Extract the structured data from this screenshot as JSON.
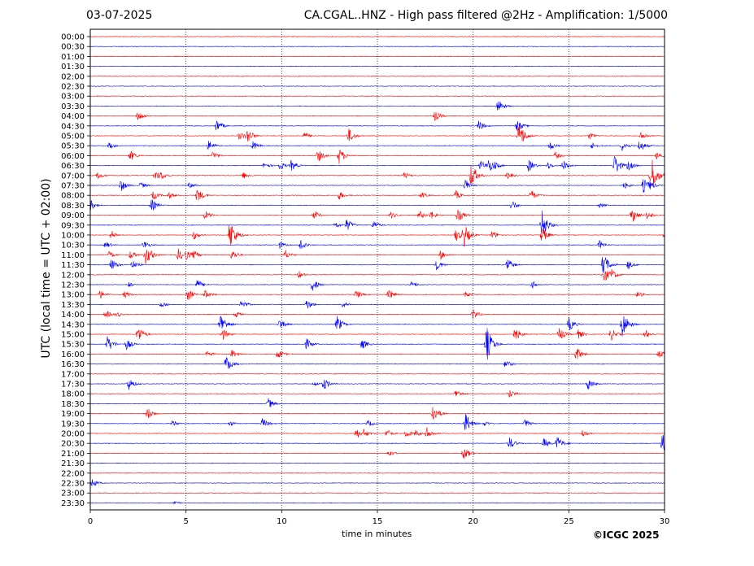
{
  "header": {
    "date": "03-07-2025",
    "title": "CA.CGAL..HNZ - High pass filtered @2Hz - Amplification: 1/5000"
  },
  "credit": "©ICGC 2025",
  "chart_data": {
    "type": "line",
    "title": "CA.CGAL..HNZ - High pass filtered @2Hz - Amplification: 1/5000",
    "xlabel": "time in minutes",
    "ylabel": "UTC (local time = UTC + 02:00)",
    "xlim": [
      0,
      30
    ],
    "x_ticks": [
      0,
      5,
      10,
      15,
      20,
      25,
      30
    ],
    "y_ticks": [
      "00:00",
      "00:30",
      "01:00",
      "01:30",
      "02:00",
      "02:30",
      "03:00",
      "03:30",
      "04:00",
      "04:30",
      "05:00",
      "05:30",
      "06:00",
      "06:30",
      "07:00",
      "07:30",
      "08:00",
      "08:30",
      "09:00",
      "09:30",
      "10:00",
      "10:30",
      "11:00",
      "11:30",
      "12:00",
      "12:30",
      "13:00",
      "13:30",
      "14:00",
      "14:30",
      "15:00",
      "15:30",
      "16:00",
      "16:30",
      "17:00",
      "17:30",
      "18:00",
      "18:30",
      "19:00",
      "19:30",
      "20:00",
      "20:30",
      "21:00",
      "21:30",
      "22:00",
      "22:30",
      "23:00",
      "23:30"
    ],
    "grid": {
      "x": true,
      "x_style": "dotted",
      "y": false
    },
    "trace_colors": [
      "#ff0000",
      "#0000ff"
    ],
    "trace_colors_note": "traces alternate red/blue per row",
    "events": [
      {
        "row": 7,
        "min": 21.3,
        "amp": 0.8
      },
      {
        "row": 8,
        "min": 2.5,
        "amp": 0.6
      },
      {
        "row": 8,
        "min": 18.0,
        "amp": 0.6
      },
      {
        "row": 9,
        "min": 6.6,
        "amp": 0.7
      },
      {
        "row": 9,
        "min": 20.3,
        "amp": 0.6
      },
      {
        "row": 9,
        "min": 22.3,
        "amp": 0.7
      },
      {
        "row": 10,
        "min": 7.8,
        "amp": 0.5
      },
      {
        "row": 10,
        "min": 8.2,
        "amp": 0.9
      },
      {
        "row": 10,
        "min": 11.2,
        "amp": 0.4
      },
      {
        "row": 10,
        "min": 13.5,
        "amp": 0.8
      },
      {
        "row": 10,
        "min": 22.4,
        "amp": 1.6
      },
      {
        "row": 10,
        "min": 26.1,
        "amp": 0.4
      },
      {
        "row": 10,
        "min": 28.8,
        "amp": 0.5
      },
      {
        "row": 11,
        "min": 1.0,
        "amp": 0.4
      },
      {
        "row": 11,
        "min": 6.2,
        "amp": 0.6
      },
      {
        "row": 11,
        "min": 8.5,
        "amp": 0.5
      },
      {
        "row": 11,
        "min": 24.0,
        "amp": 0.5
      },
      {
        "row": 11,
        "min": 26.2,
        "amp": 0.4
      },
      {
        "row": 11,
        "min": 27.8,
        "amp": 0.6
      },
      {
        "row": 11,
        "min": 28.7,
        "amp": 0.7
      },
      {
        "row": 12,
        "min": 2.1,
        "amp": 0.6
      },
      {
        "row": 12,
        "min": 6.4,
        "amp": 0.5
      },
      {
        "row": 12,
        "min": 11.9,
        "amp": 0.7
      },
      {
        "row": 12,
        "min": 13.0,
        "amp": 0.9
      },
      {
        "row": 12,
        "min": 24.3,
        "amp": 0.4
      },
      {
        "row": 12,
        "min": 29.6,
        "amp": 0.4
      },
      {
        "row": 13,
        "min": 9.1,
        "amp": 0.4
      },
      {
        "row": 13,
        "min": 9.9,
        "amp": 0.5
      },
      {
        "row": 13,
        "min": 10.5,
        "amp": 0.6
      },
      {
        "row": 13,
        "min": 20.4,
        "amp": 0.6
      },
      {
        "row": 13,
        "min": 20.8,
        "amp": 0.8
      },
      {
        "row": 13,
        "min": 21.1,
        "amp": 0.5
      },
      {
        "row": 13,
        "min": 22.9,
        "amp": 0.7
      },
      {
        "row": 13,
        "min": 23.9,
        "amp": 0.4
      },
      {
        "row": 13,
        "min": 24.7,
        "amp": 0.6
      },
      {
        "row": 13,
        "min": 27.4,
        "amp": 1.2
      },
      {
        "row": 13,
        "min": 28.1,
        "amp": 0.6
      },
      {
        "row": 14,
        "min": 0.4,
        "amp": 0.4
      },
      {
        "row": 14,
        "min": 3.4,
        "amp": 0.6
      },
      {
        "row": 14,
        "min": 3.7,
        "amp": 0.5
      },
      {
        "row": 14,
        "min": 8.0,
        "amp": 0.4
      },
      {
        "row": 14,
        "min": 16.4,
        "amp": 0.4
      },
      {
        "row": 14,
        "min": 19.9,
        "amp": 1.4
      },
      {
        "row": 14,
        "min": 21.8,
        "amp": 0.4
      },
      {
        "row": 14,
        "min": 29.3,
        "amp": 2.2
      },
      {
        "row": 15,
        "min": 1.6,
        "amp": 0.7
      },
      {
        "row": 15,
        "min": 2.6,
        "amp": 0.4
      },
      {
        "row": 15,
        "min": 5.2,
        "amp": 0.4
      },
      {
        "row": 15,
        "min": 19.6,
        "amp": 0.7
      },
      {
        "row": 15,
        "min": 27.9,
        "amp": 0.4
      },
      {
        "row": 15,
        "min": 28.9,
        "amp": 0.8
      },
      {
        "row": 15,
        "min": 29.2,
        "amp": 0.6
      },
      {
        "row": 16,
        "min": 3.3,
        "amp": 0.5
      },
      {
        "row": 16,
        "min": 4.1,
        "amp": 0.4
      },
      {
        "row": 16,
        "min": 5.6,
        "amp": 0.8
      },
      {
        "row": 16,
        "min": 13.0,
        "amp": 0.5
      },
      {
        "row": 16,
        "min": 17.3,
        "amp": 0.4
      },
      {
        "row": 16,
        "min": 19.1,
        "amp": 0.5
      },
      {
        "row": 16,
        "min": 23.0,
        "amp": 0.7
      },
      {
        "row": 17,
        "min": 0.0,
        "amp": 0.6
      },
      {
        "row": 17,
        "min": 3.2,
        "amp": 0.7
      },
      {
        "row": 17,
        "min": 22.0,
        "amp": 0.6
      },
      {
        "row": 17,
        "min": 26.6,
        "amp": 0.3
      },
      {
        "row": 18,
        "min": 6.0,
        "amp": 0.5
      },
      {
        "row": 18,
        "min": 11.7,
        "amp": 0.5
      },
      {
        "row": 18,
        "min": 15.7,
        "amp": 0.4
      },
      {
        "row": 18,
        "min": 17.2,
        "amp": 0.5
      },
      {
        "row": 18,
        "min": 17.8,
        "amp": 0.5
      },
      {
        "row": 18,
        "min": 19.2,
        "amp": 0.8
      },
      {
        "row": 18,
        "min": 28.3,
        "amp": 0.9
      },
      {
        "row": 18,
        "min": 29.1,
        "amp": 0.5
      },
      {
        "row": 19,
        "min": 12.8,
        "amp": 0.4
      },
      {
        "row": 19,
        "min": 13.4,
        "amp": 0.7
      },
      {
        "row": 19,
        "min": 14.8,
        "amp": 0.5
      },
      {
        "row": 19,
        "min": 23.6,
        "amp": 1.6
      },
      {
        "row": 20,
        "min": 1.1,
        "amp": 0.5
      },
      {
        "row": 20,
        "min": 5.4,
        "amp": 0.5
      },
      {
        "row": 20,
        "min": 7.3,
        "amp": 1.8
      },
      {
        "row": 20,
        "min": 19.1,
        "amp": 0.7
      },
      {
        "row": 20,
        "min": 19.5,
        "amp": 1.4
      },
      {
        "row": 20,
        "min": 21.0,
        "amp": 0.5
      },
      {
        "row": 20,
        "min": 23.6,
        "amp": 0.9
      },
      {
        "row": 20,
        "min": 30.0,
        "amp": 0.4
      },
      {
        "row": 21,
        "min": 0.8,
        "amp": 0.4
      },
      {
        "row": 21,
        "min": 2.8,
        "amp": 0.5
      },
      {
        "row": 21,
        "min": 9.9,
        "amp": 0.4
      },
      {
        "row": 21,
        "min": 11.0,
        "amp": 0.7
      },
      {
        "row": 21,
        "min": 26.6,
        "amp": 0.5
      },
      {
        "row": 22,
        "min": 1.0,
        "amp": 0.4
      },
      {
        "row": 22,
        "min": 2.1,
        "amp": 0.5
      },
      {
        "row": 22,
        "min": 2.9,
        "amp": 1.1
      },
      {
        "row": 22,
        "min": 3.1,
        "amp": 0.6
      },
      {
        "row": 22,
        "min": 4.6,
        "amp": 0.7
      },
      {
        "row": 22,
        "min": 5.0,
        "amp": 0.6
      },
      {
        "row": 22,
        "min": 5.4,
        "amp": 0.5
      },
      {
        "row": 22,
        "min": 7.4,
        "amp": 0.6
      },
      {
        "row": 22,
        "min": 10.2,
        "amp": 0.5
      },
      {
        "row": 22,
        "min": 18.3,
        "amp": 0.5
      },
      {
        "row": 23,
        "min": 1.1,
        "amp": 0.7
      },
      {
        "row": 23,
        "min": 2.2,
        "amp": 0.5
      },
      {
        "row": 23,
        "min": 18.1,
        "amp": 0.6
      },
      {
        "row": 23,
        "min": 21.8,
        "amp": 0.7
      },
      {
        "row": 23,
        "min": 26.8,
        "amp": 1.3
      },
      {
        "row": 23,
        "min": 28.1,
        "amp": 0.5
      },
      {
        "row": 24,
        "min": 10.9,
        "amp": 0.4
      },
      {
        "row": 24,
        "min": 26.8,
        "amp": 1.0
      },
      {
        "row": 24,
        "min": 27.2,
        "amp": 0.7
      },
      {
        "row": 25,
        "min": 2.0,
        "amp": 0.3
      },
      {
        "row": 25,
        "min": 5.6,
        "amp": 0.6
      },
      {
        "row": 25,
        "min": 11.6,
        "amp": 0.8
      },
      {
        "row": 25,
        "min": 16.8,
        "amp": 0.4
      },
      {
        "row": 25,
        "min": 23.1,
        "amp": 0.4
      },
      {
        "row": 26,
        "min": 0.5,
        "amp": 0.5
      },
      {
        "row": 26,
        "min": 1.8,
        "amp": 0.4
      },
      {
        "row": 26,
        "min": 5.1,
        "amp": 0.7
      },
      {
        "row": 26,
        "min": 6.0,
        "amp": 0.5
      },
      {
        "row": 26,
        "min": 13.9,
        "amp": 0.5
      },
      {
        "row": 26,
        "min": 15.6,
        "amp": 0.6
      },
      {
        "row": 26,
        "min": 19.6,
        "amp": 0.4
      },
      {
        "row": 26,
        "min": 28.6,
        "amp": 0.4
      },
      {
        "row": 27,
        "min": 3.7,
        "amp": 0.4
      },
      {
        "row": 27,
        "min": 7.9,
        "amp": 0.6
      },
      {
        "row": 27,
        "min": 11.3,
        "amp": 0.6
      },
      {
        "row": 27,
        "min": 13.2,
        "amp": 0.4
      },
      {
        "row": 28,
        "min": 0.8,
        "amp": 0.5
      },
      {
        "row": 28,
        "min": 1.4,
        "amp": 0.3
      },
      {
        "row": 28,
        "min": 7.6,
        "amp": 0.4
      },
      {
        "row": 28,
        "min": 20.0,
        "amp": 0.6
      },
      {
        "row": 29,
        "min": 6.8,
        "amp": 1.3
      },
      {
        "row": 29,
        "min": 9.9,
        "amp": 0.6
      },
      {
        "row": 29,
        "min": 12.9,
        "amp": 0.9
      },
      {
        "row": 29,
        "min": 25.0,
        "amp": 0.8
      },
      {
        "row": 29,
        "min": 27.8,
        "amp": 1.6
      },
      {
        "row": 30,
        "min": 2.5,
        "amp": 1.0
      },
      {
        "row": 30,
        "min": 6.9,
        "amp": 0.7
      },
      {
        "row": 30,
        "min": 22.2,
        "amp": 0.8
      },
      {
        "row": 30,
        "min": 24.5,
        "amp": 0.8
      },
      {
        "row": 30,
        "min": 25.5,
        "amp": 0.5
      },
      {
        "row": 30,
        "min": 27.2,
        "amp": 0.7
      },
      {
        "row": 30,
        "min": 29.0,
        "amp": 0.5
      },
      {
        "row": 31,
        "min": 0.9,
        "amp": 0.9
      },
      {
        "row": 31,
        "min": 1.9,
        "amp": 0.6
      },
      {
        "row": 31,
        "min": 11.3,
        "amp": 0.6
      },
      {
        "row": 31,
        "min": 14.2,
        "amp": 0.6
      },
      {
        "row": 31,
        "min": 20.7,
        "amp": 2.0
      },
      {
        "row": 32,
        "min": 6.1,
        "amp": 0.4
      },
      {
        "row": 32,
        "min": 7.4,
        "amp": 0.5
      },
      {
        "row": 32,
        "min": 9.8,
        "amp": 0.6
      },
      {
        "row": 32,
        "min": 25.4,
        "amp": 0.8
      },
      {
        "row": 32,
        "min": 29.7,
        "amp": 0.5
      },
      {
        "row": 33,
        "min": 7.1,
        "amp": 1.0
      },
      {
        "row": 33,
        "min": 21.7,
        "amp": 0.5
      },
      {
        "row": 35,
        "min": 2.0,
        "amp": 0.7
      },
      {
        "row": 35,
        "min": 11.7,
        "amp": 0.3
      },
      {
        "row": 35,
        "min": 12.2,
        "amp": 0.7
      },
      {
        "row": 35,
        "min": 26.0,
        "amp": 0.7
      },
      {
        "row": 36,
        "min": 19.1,
        "amp": 0.5
      },
      {
        "row": 36,
        "min": 21.9,
        "amp": 0.5
      },
      {
        "row": 37,
        "min": 9.3,
        "amp": 0.6
      },
      {
        "row": 38,
        "min": 3.0,
        "amp": 0.7
      },
      {
        "row": 38,
        "min": 17.9,
        "amp": 1.1
      },
      {
        "row": 39,
        "min": 4.3,
        "amp": 0.4
      },
      {
        "row": 39,
        "min": 7.3,
        "amp": 0.3
      },
      {
        "row": 39,
        "min": 9.0,
        "amp": 0.6
      },
      {
        "row": 39,
        "min": 14.5,
        "amp": 0.4
      },
      {
        "row": 39,
        "min": 19.6,
        "amp": 1.2
      },
      {
        "row": 39,
        "min": 20.6,
        "amp": 0.3
      },
      {
        "row": 39,
        "min": 22.7,
        "amp": 0.5
      },
      {
        "row": 40,
        "min": 13.9,
        "amp": 0.6
      },
      {
        "row": 40,
        "min": 14.3,
        "amp": 0.5
      },
      {
        "row": 40,
        "min": 15.5,
        "amp": 0.5
      },
      {
        "row": 40,
        "min": 16.5,
        "amp": 0.5
      },
      {
        "row": 40,
        "min": 17.0,
        "amp": 0.4
      },
      {
        "row": 40,
        "min": 17.6,
        "amp": 0.7
      },
      {
        "row": 40,
        "min": 25.7,
        "amp": 0.4
      },
      {
        "row": 41,
        "min": 21.9,
        "amp": 0.7
      },
      {
        "row": 41,
        "min": 23.7,
        "amp": 0.6
      },
      {
        "row": 41,
        "min": 24.4,
        "amp": 0.8
      },
      {
        "row": 41,
        "min": 29.9,
        "amp": 1.1
      },
      {
        "row": 42,
        "min": 15.6,
        "amp": 0.4
      },
      {
        "row": 42,
        "min": 19.5,
        "amp": 0.8
      },
      {
        "row": 45,
        "min": 0.1,
        "amp": 0.5
      },
      {
        "row": 47,
        "min": 4.4,
        "amp": 0.2
      }
    ]
  }
}
